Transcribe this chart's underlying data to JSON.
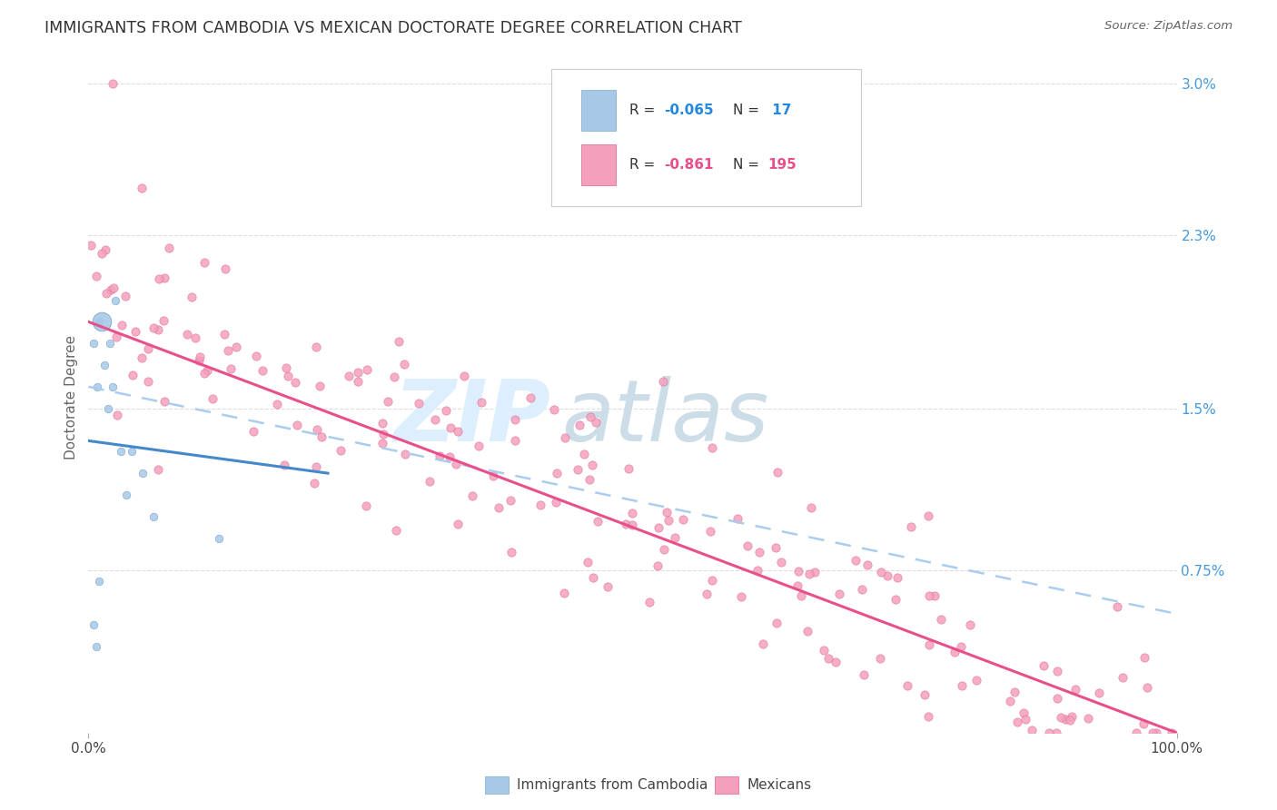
{
  "title": "IMMIGRANTS FROM CAMBODIA VS MEXICAN DOCTORATE DEGREE CORRELATION CHART",
  "source": "Source: ZipAtlas.com",
  "ylabel": "Doctorate Degree",
  "yticks": [
    "0.75%",
    "1.5%",
    "2.3%",
    "3.0%"
  ],
  "ytick_vals": [
    0.0075,
    0.015,
    0.023,
    0.03
  ],
  "xlim": [
    0.0,
    1.0
  ],
  "ylim": [
    -0.001,
    0.032
  ],
  "plot_ylim": [
    0.0,
    0.031
  ],
  "cam_color": "#a8c8e8",
  "cam_edge_color": "#7aa8cc",
  "mex_color": "#f4a0bc",
  "mex_edge_color": "#e06090",
  "blue_line_color": "#4488cc",
  "pink_line_color": "#e8508c",
  "dash_line_color": "#aaccee",
  "watermark_zip_color": "#ddeeff",
  "watermark_atlas_color": "#ccdde8",
  "grid_color": "#dddddd",
  "background_color": "#ffffff",
  "title_color": "#333333",
  "source_color": "#666666",
  "right_tick_color": "#4499dd",
  "legend_border_color": "#cccccc",
  "R_cambodia": -0.065,
  "N_cambodia": 17,
  "R_mexican": -0.861,
  "N_mexican": 195
}
